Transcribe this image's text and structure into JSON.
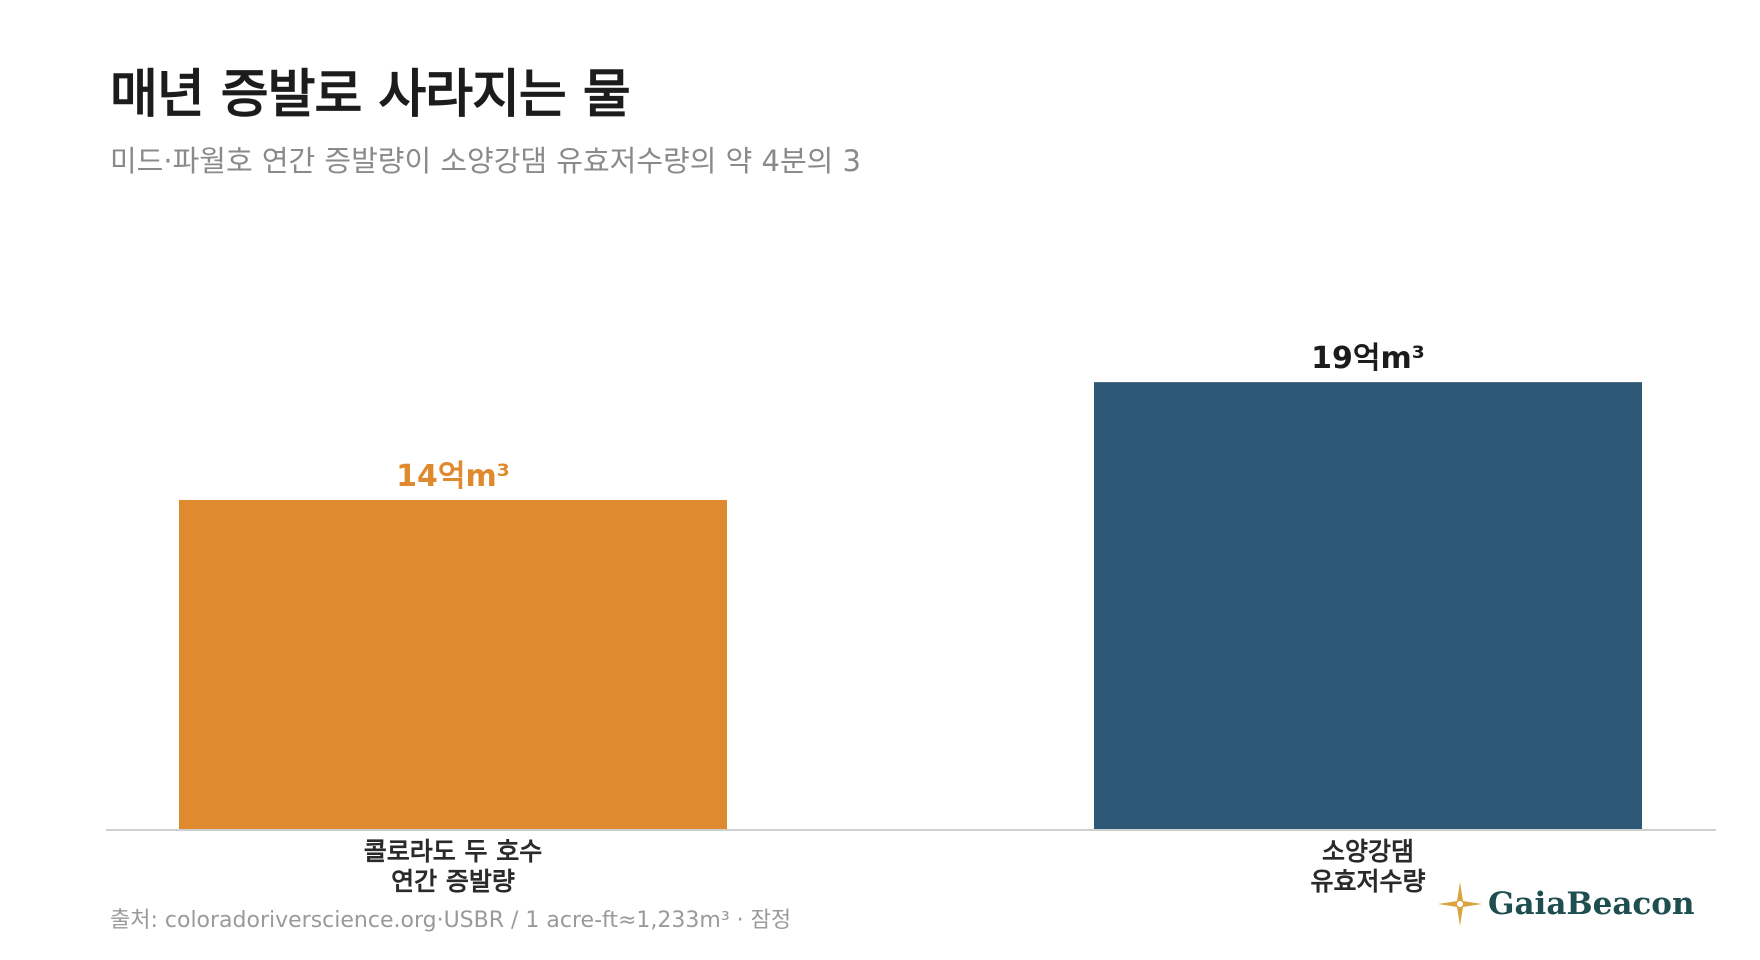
{
  "header": {
    "title": "매년 증발로 사라지는 물",
    "subtitle": "미드·파월호 연간 증발량이 소양강댐 유효저수량의 약 4분의 3"
  },
  "chart_data": {
    "type": "bar",
    "title": "매년 증발로 사라지는 물",
    "subtitle": "미드·파월호 연간 증발량이 소양강댐 유효저수량의 약 4분의 3",
    "unit": "억m³",
    "ylim": [
      0,
      21
    ],
    "grid": false,
    "categories": [
      [
        "콜로라도 두 호수",
        "연간 증발량"
      ],
      [
        "소양강댐",
        "유효저수량"
      ]
    ],
    "values": [
      14,
      19
    ],
    "data_labels": [
      "14억m³",
      "19억m³"
    ],
    "colors": [
      "#df8a2e",
      "#2d5977"
    ],
    "label_colors": [
      "#df8a2e",
      "#1c1c1c"
    ]
  },
  "footer": {
    "source": "출처: coloradoriverscience.org·USBR / 1 acre-ft≈1,233m³ · 잠정",
    "logo_text": "GaiaBeacon",
    "logo_icon": "compass-star-icon",
    "logo_colors": [
      "#d9a441",
      "#1f4e4f"
    ]
  }
}
